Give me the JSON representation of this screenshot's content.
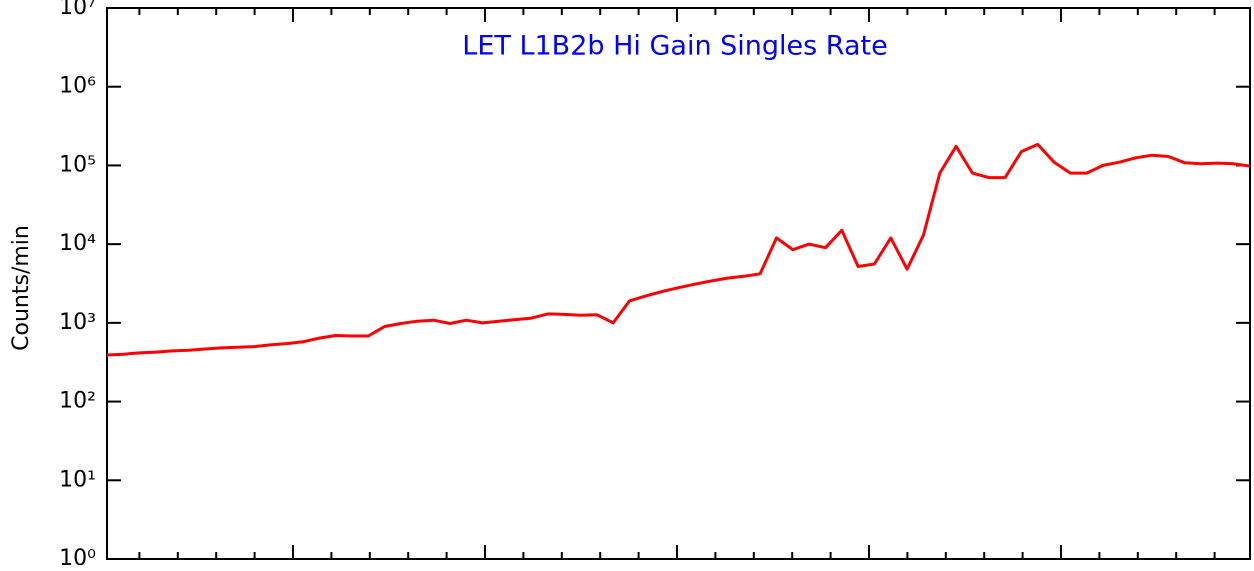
{
  "chart_data": {
    "type": "line",
    "title": "LET L1B2b Hi Gain Singles Rate",
    "y_label": "Counts/min",
    "color": "#ff0000",
    "log_y": true,
    "values": [
      390,
      400,
      415,
      425,
      440,
      450,
      465,
      480,
      490,
      500,
      525,
      545,
      575,
      640,
      690,
      680,
      680,
      900,
      980,
      1050,
      1080,
      980,
      1080,
      1000,
      1050,
      1100,
      1150,
      1300,
      1280,
      1250,
      1270,
      1000,
      1900,
      2200,
      2500,
      2800,
      3100,
      3400,
      3700,
      3900,
      4200,
      12000,
      8500,
      10000,
      9000,
      15000,
      5200,
      5600,
      12000,
      4800,
      13000,
      80000,
      175000,
      80000,
      70000,
      70000,
      150000,
      185000,
      110000,
      80000,
      80000,
      100000,
      110000,
      125000,
      135000,
      130000,
      108000,
      105000,
      107000,
      105000,
      98000
    ],
    "ylim": [
      1,
      10000000
    ],
    "yticks": [
      {
        "value": 1,
        "label": "10⁰"
      },
      {
        "value": 10,
        "label": "10¹"
      },
      {
        "value": 100,
        "label": "10²"
      },
      {
        "value": 1000,
        "label": "10³"
      },
      {
        "value": 10000,
        "label": "10⁴"
      },
      {
        "value": 100000,
        "label": "10⁵"
      },
      {
        "value": 1000000,
        "label": "10⁶"
      },
      {
        "value": 10000000,
        "label": "10⁷"
      }
    ]
  }
}
